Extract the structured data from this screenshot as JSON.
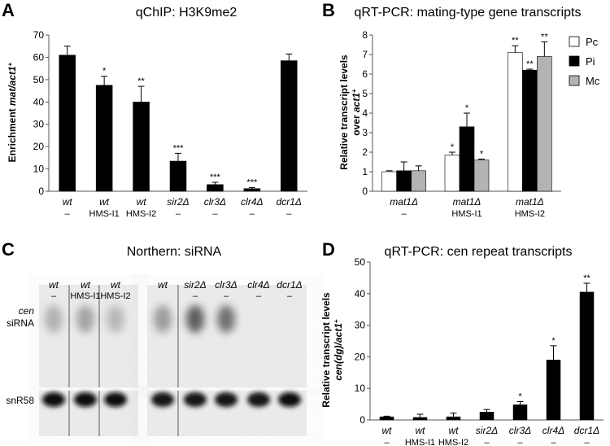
{
  "panels": {
    "A": {
      "letter": "A"
    },
    "B": {
      "letter": "B"
    },
    "C": {
      "letter": "C"
    },
    "D": {
      "letter": "D"
    }
  },
  "chart_data": [
    {
      "id": "A",
      "type": "bar",
      "title": "qChIP: H3K9me2",
      "ylabel_main": "Enrichment ",
      "ylabel_italic": "mat/act1",
      "ylabel_sup": "+",
      "ylim": [
        0,
        70
      ],
      "yticks": [
        0,
        10,
        20,
        30,
        40,
        50,
        60,
        70
      ],
      "categories": [
        {
          "name": "wt",
          "sub": "–"
        },
        {
          "name": "wt",
          "sub": "HMS-I1"
        },
        {
          "name": "wt",
          "sub": "HMS-I2"
        },
        {
          "name": "sir2Δ",
          "sub": "–"
        },
        {
          "name": "clr3Δ",
          "sub": "–"
        },
        {
          "name": "clr4Δ",
          "sub": "–"
        },
        {
          "name": "dcr1Δ",
          "sub": "–"
        }
      ],
      "values": [
        61,
        47.5,
        40,
        13.5,
        3,
        1.2,
        58.5
      ],
      "errors": [
        4,
        4,
        7,
        3.5,
        1,
        0.5,
        3
      ],
      "stars": [
        "",
        "*",
        "**",
        "***",
        "***",
        "***",
        ""
      ],
      "color": "#000000"
    },
    {
      "id": "B",
      "type": "bar",
      "title": "qRT-PCR: mating-type gene transcripts",
      "ylabel_line1": "Relative transcript levels",
      "ylabel_line2_text": "over ",
      "ylabel_line2_italic": "act1",
      "ylabel_line2_sup": "+",
      "ylim": [
        0,
        8
      ],
      "yticks": [
        0,
        1,
        2,
        3,
        4,
        5,
        6,
        7,
        8
      ],
      "categories": [
        {
          "name": "mat1Δ",
          "sub": "–"
        },
        {
          "name": "mat1Δ",
          "sub": "HMS-I1"
        },
        {
          "name": "mat1Δ",
          "sub": "HMS-I2"
        }
      ],
      "series": [
        {
          "name": "Pc",
          "color": "#ffffff",
          "values": [
            1.0,
            1.85,
            7.1
          ],
          "errors": [
            0.05,
            0.15,
            0.35
          ],
          "stars": [
            "",
            "*",
            "**"
          ]
        },
        {
          "name": "Pi",
          "color": "#000000",
          "values": [
            1.05,
            3.3,
            6.2
          ],
          "errors": [
            0.45,
            0.7,
            0.05
          ],
          "stars": [
            "",
            "*",
            "**"
          ]
        },
        {
          "name": "Mc",
          "color": "#b3b3b3",
          "values": [
            1.05,
            1.6,
            6.9
          ],
          "errors": [
            0.25,
            0.05,
            0.75
          ],
          "stars": [
            "",
            "*",
            "**"
          ]
        }
      ],
      "legend": "top-right"
    },
    {
      "id": "D",
      "type": "bar",
      "title": "qRT-PCR: cen repeat transcripts",
      "ylabel_line1": "Relative transcript levels",
      "ylabel_line2_italic": "cen(dg)/act1",
      "ylabel_line2_sup": "+",
      "ylim": [
        0,
        50
      ],
      "yticks": [
        0,
        10,
        20,
        30,
        40,
        50
      ],
      "categories": [
        {
          "name": "wt",
          "sub": "–"
        },
        {
          "name": "wt",
          "sub": "HMS-I1"
        },
        {
          "name": "wt",
          "sub": "HMS-I2"
        },
        {
          "name": "sir2Δ",
          "sub": "–"
        },
        {
          "name": "clr3Δ",
          "sub": "–"
        },
        {
          "name": "clr4Δ",
          "sub": "–"
        },
        {
          "name": "dcr1Δ",
          "sub": "–"
        }
      ],
      "values": [
        1.0,
        0.8,
        1.0,
        2.5,
        4.8,
        19,
        40.5
      ],
      "errors": [
        0.2,
        1.0,
        1.2,
        0.8,
        1.0,
        4.5,
        2.8
      ],
      "stars": [
        "",
        "",
        "",
        "",
        "*",
        "*",
        "**"
      ],
      "color": "#000000"
    }
  ],
  "northern": {
    "title": "Northern: siRNA",
    "row_label_cen": "cen",
    "row_label_sirna": "siRNA",
    "row_label_snr": "snR58",
    "left_lanes": [
      {
        "name": "wt",
        "sub": "–"
      },
      {
        "name": "wt",
        "sub": "HMS-I1"
      },
      {
        "name": "wt",
        "sub": "HMS-I2"
      }
    ],
    "right_lanes": [
      {
        "name": "wt",
        "sub": ""
      },
      {
        "name": "sir2Δ",
        "sub": "–"
      },
      {
        "name": "clr3Δ",
        "sub": "–"
      },
      {
        "name": "clr4Δ",
        "sub": "–"
      },
      {
        "name": "dcr1Δ",
        "sub": "–"
      }
    ],
    "sirna_intensity": [
      0.35,
      0.45,
      0.3,
      0.5,
      0.85,
      0.75,
      0.0,
      0.0
    ],
    "snr_intensity": [
      1.0,
      1.0,
      0.9,
      0.85,
      0.8,
      0.85,
      0.85,
      1.0
    ]
  }
}
